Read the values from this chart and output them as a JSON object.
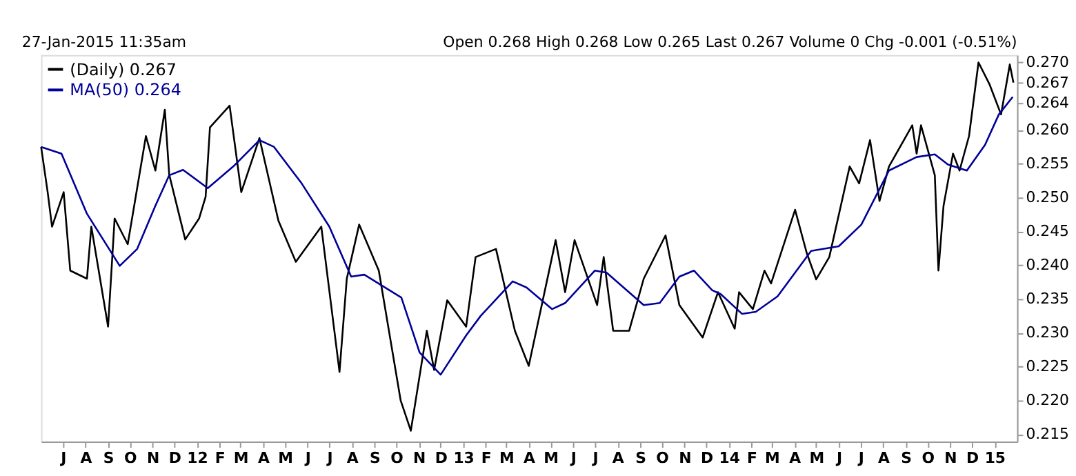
{
  "chart_data": {
    "type": "line",
    "annotations": [
      "27-Jan-2015 11:35am",
      "Open 0.268  High 0.268  Low 0.265  Last 0.267  Volume 0  Chg -0.001 (-0.51%)"
    ],
    "xlim": [
      "2011-06-01",
      "2015-02-01"
    ],
    "ylim": [
      0.2139,
      0.2711
    ],
    "yticks": [
      0.215,
      {
        "value": 0.22,
        "label": "0.220"
      },
      0.225,
      {
        "value": 0.23,
        "label": "0.230"
      },
      0.235,
      {
        "value": 0.24,
        "label": "0.240"
      },
      0.245,
      {
        "value": 0.25,
        "label": "0.250"
      },
      0.255,
      {
        "value": 0.26,
        "label": "0.260"
      },
      0.264,
      0.267,
      {
        "value": 0.27,
        "label": "0.270"
      }
    ],
    "xticks": [
      {
        "value": "2011-07-01",
        "label": "J"
      },
      {
        "value": "2011-08-01",
        "label": "A"
      },
      {
        "value": "2011-09-01",
        "label": "S"
      },
      {
        "value": "2011-10-01",
        "label": "O"
      },
      {
        "value": "2011-11-01",
        "label": "N"
      },
      {
        "value": "2011-12-01",
        "label": "D"
      },
      {
        "value": "2012-01-01",
        "label": "12"
      },
      {
        "value": "2012-02-01",
        "label": "F"
      },
      {
        "value": "2012-03-01",
        "label": "M"
      },
      {
        "value": "2012-04-01",
        "label": "A"
      },
      {
        "value": "2012-05-01",
        "label": "M"
      },
      {
        "value": "2012-06-01",
        "label": "J"
      },
      {
        "value": "2012-07-01",
        "label": "J"
      },
      {
        "value": "2012-08-01",
        "label": "A"
      },
      {
        "value": "2012-09-01",
        "label": "S"
      },
      {
        "value": "2012-10-01",
        "label": "O"
      },
      {
        "value": "2012-11-01",
        "label": "N"
      },
      {
        "value": "2012-12-01",
        "label": "D"
      },
      {
        "value": "2013-01-01",
        "label": "13"
      },
      {
        "value": "2013-02-01",
        "label": "F"
      },
      {
        "value": "2013-03-01",
        "label": "M"
      },
      {
        "value": "2013-04-01",
        "label": "A"
      },
      {
        "value": "2013-05-01",
        "label": "M"
      },
      {
        "value": "2013-06-01",
        "label": "J"
      },
      {
        "value": "2013-07-01",
        "label": "J"
      },
      {
        "value": "2013-08-01",
        "label": "A"
      },
      {
        "value": "2013-09-01",
        "label": "S"
      },
      {
        "value": "2013-10-01",
        "label": "O"
      },
      {
        "value": "2013-11-01",
        "label": "N"
      },
      {
        "value": "2013-12-01",
        "label": "D"
      },
      {
        "value": "2014-01-01",
        "label": "14"
      },
      {
        "value": "2014-02-01",
        "label": "F"
      },
      {
        "value": "2014-03-01",
        "label": "M"
      },
      {
        "value": "2014-04-01",
        "label": "A"
      },
      {
        "value": "2014-05-01",
        "label": "M"
      },
      {
        "value": "2014-06-01",
        "label": "J"
      },
      {
        "value": "2014-07-01",
        "label": "J"
      },
      {
        "value": "2014-08-01",
        "label": "A"
      },
      {
        "value": "2014-09-01",
        "label": "S"
      },
      {
        "value": "2014-10-01",
        "label": "O"
      },
      {
        "value": "2014-11-01",
        "label": "N"
      },
      {
        "value": "2014-12-01",
        "label": "D"
      },
      {
        "value": "2015-01-01",
        "label": "15"
      }
    ],
    "grid": false,
    "legend": "top left",
    "marker": "none",
    "line_style": "solid",
    "series": [
      {
        "name": "(Daily) 0.267",
        "color": "#000000",
        "x": [
          "2011-06-01",
          "2011-06-10",
          "2011-06-16",
          "2011-07-02",
          "2011-07-11",
          "2011-08-03",
          "2011-08-09",
          "2011-09-01",
          "2011-09-10",
          "2011-09-28",
          "2011-10-23",
          "2011-11-05",
          "2011-11-18",
          "2011-11-24",
          "2011-12-16",
          "2012-01-04",
          "2012-01-13",
          "2012-01-19",
          "2012-02-15",
          "2012-03-02",
          "2012-03-27",
          "2012-04-22",
          "2012-05-16",
          "2012-06-20",
          "2012-07-15",
          "2012-07-25",
          "2012-08-11",
          "2012-09-07",
          "2012-10-07",
          "2012-10-21",
          "2012-11-12",
          "2012-11-22",
          "2012-12-10",
          "2013-01-05",
          "2013-01-18",
          "2013-02-15",
          "2013-03-13",
          "2013-04-01",
          "2013-05-08",
          "2013-05-21",
          "2013-06-03",
          "2013-07-04",
          "2013-07-13",
          "2013-07-26",
          "2013-08-17",
          "2013-09-06",
          "2013-10-06",
          "2013-10-25",
          "2013-11-26",
          "2013-12-17",
          "2014-01-09",
          "2014-01-15",
          "2014-02-03",
          "2014-02-19",
          "2014-02-28",
          "2014-04-02",
          "2014-04-18",
          "2014-05-01",
          "2014-05-19",
          "2014-06-16",
          "2014-06-29",
          "2014-07-14",
          "2014-07-27",
          "2014-08-09",
          "2014-09-10",
          "2014-09-16",
          "2014-09-22",
          "2014-10-11",
          "2014-10-16",
          "2014-10-23",
          "2014-11-05",
          "2014-11-14",
          "2014-11-27",
          "2014-12-10",
          "2014-12-25",
          "2015-01-10",
          "2015-01-22",
          "2015-01-27"
        ],
        "values": [
          0.2575,
          0.2508,
          0.2457,
          0.2508,
          0.2392,
          0.238,
          0.2457,
          0.2309,
          0.2469,
          0.2431,
          0.2591,
          0.254,
          0.263,
          0.2534,
          0.2438,
          0.2469,
          0.2501,
          0.2604,
          0.2636,
          0.2508,
          0.2588,
          0.2466,
          0.2405,
          0.2457,
          0.2242,
          0.238,
          0.246,
          0.2392,
          0.22,
          0.2155,
          0.2303,
          0.2245,
          0.2348,
          0.2309,
          0.2412,
          0.2424,
          0.2303,
          0.2251,
          0.2437,
          0.236,
          0.2437,
          0.2341,
          0.2412,
          0.2303,
          0.2303,
          0.238,
          0.2444,
          0.2341,
          0.2293,
          0.236,
          0.2306,
          0.236,
          0.2335,
          0.2392,
          0.2373,
          0.2482,
          0.2418,
          0.2379,
          0.2412,
          0.2546,
          0.2521,
          0.2585,
          0.2495,
          0.2546,
          0.2607,
          0.2565,
          0.2607,
          0.2533,
          0.2392,
          0.2488,
          0.2565,
          0.254,
          0.2591,
          0.27,
          0.2668,
          0.2623,
          0.2697,
          0.267
        ]
      },
      {
        "name": "MA(50) 0.264",
        "color": "#000099",
        "x": [
          "2011-06-01",
          "2011-06-29",
          "2011-08-03",
          "2011-09-17",
          "2011-10-11",
          "2011-11-05",
          "2011-11-24",
          "2011-12-13",
          "2012-01-16",
          "2012-02-20",
          "2012-03-27",
          "2012-04-16",
          "2012-05-24",
          "2012-07-01",
          "2012-07-31",
          "2012-08-18",
          "2012-10-08",
          "2012-11-02",
          "2012-12-01",
          "2013-01-05",
          "2013-01-25",
          "2013-03-10",
          "2013-03-29",
          "2013-05-03",
          "2013-05-21",
          "2013-07-01",
          "2013-07-17",
          "2013-09-06",
          "2013-09-28",
          "2013-10-25",
          "2013-11-14",
          "2013-12-09",
          "2013-12-21",
          "2014-01-19",
          "2014-02-07",
          "2014-03-09",
          "2014-04-24",
          "2014-06-01",
          "2014-07-02",
          "2014-08-09",
          "2014-09-16",
          "2014-10-11",
          "2014-10-29",
          "2014-11-24",
          "2014-12-19",
          "2015-01-07",
          "2015-01-26"
        ],
        "values": [
          0.2575,
          0.2565,
          0.2476,
          0.2399,
          0.2424,
          0.2488,
          0.2533,
          0.2541,
          0.2514,
          0.2546,
          0.2585,
          0.2575,
          0.2521,
          0.2457,
          0.2383,
          0.2386,
          0.2352,
          0.2271,
          0.2238,
          0.2296,
          0.2325,
          0.2376,
          0.2367,
          0.2335,
          0.2344,
          0.2392,
          0.2389,
          0.2341,
          0.2344,
          0.2383,
          0.2392,
          0.2363,
          0.2357,
          0.2328,
          0.2331,
          0.2354,
          0.2421,
          0.2428,
          0.246,
          0.254,
          0.256,
          0.2564,
          0.2549,
          0.254,
          0.2578,
          0.2623,
          0.2649
        ]
      }
    ]
  }
}
